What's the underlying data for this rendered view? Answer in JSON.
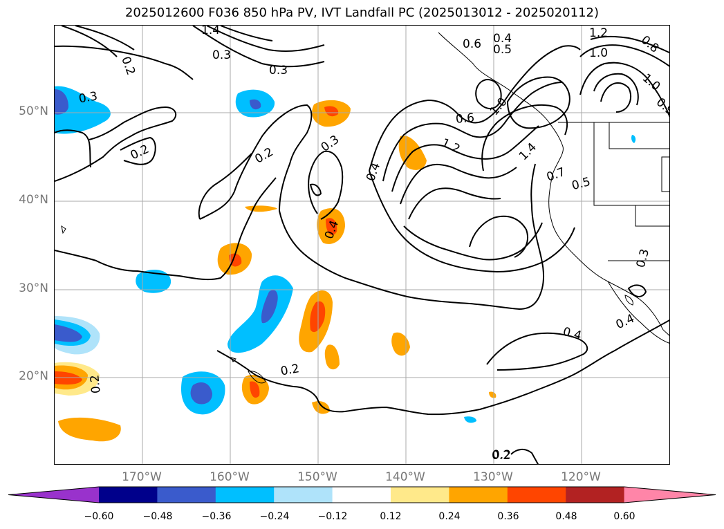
{
  "title": "2025012600 F036 850 hPa PV, IVT Landfall PC (2025013012 - 2025020112)",
  "lat_labels": [
    "50°N",
    "40°N",
    "30°N",
    "20°N"
  ],
  "lon_labels": [
    "170°W",
    "160°W",
    "150°W",
    "140°W",
    "130°W",
    "120°W"
  ],
  "colorbar": {
    "ticks": [
      "−0.60",
      "−0.48",
      "−0.36",
      "−0.24",
      "−0.12",
      "0.12",
      "0.24",
      "0.36",
      "0.48",
      "0.60"
    ],
    "colors": {
      "under": "#9932cc",
      "bins": [
        "#00008b",
        "#3a5bcc",
        "#00bfff",
        "#afe3fa",
        "#ffffff",
        "#ffe98a",
        "#ffa500",
        "#ff4500",
        "#b22222"
      ],
      "over": "#ff85a8"
    }
  },
  "contour_labels": [
    "0.2",
    "0.3",
    "0.2",
    "0.2",
    "0.3",
    "0.2",
    "0.4",
    "0.4",
    "0.2",
    "0.2",
    "0.3",
    "0.4",
    "0.5",
    "1.2",
    "1.0",
    "1.0",
    "0.9",
    "0.6",
    "1.2",
    "1.4",
    "1.0",
    "0.7",
    "0.5",
    "0.3",
    "0.4",
    "0.4",
    "0.2",
    "0.6",
    "1.4",
    "0.3",
    "0.8"
  ]
}
